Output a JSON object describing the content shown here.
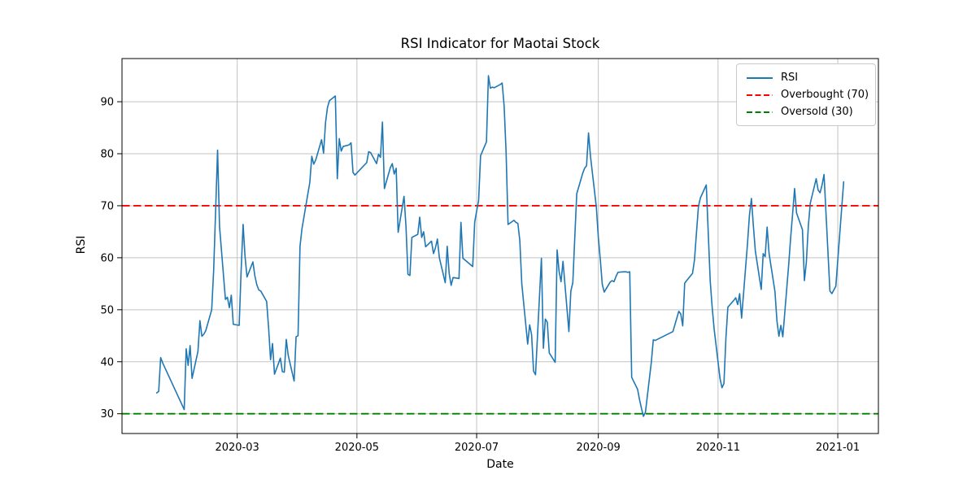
{
  "figure": {
    "title": "RSI Indicator for Maotai Stock",
    "xlabel": "Date",
    "ylabel": "RSI"
  },
  "chart_data": {
    "type": "line",
    "title": "RSI Indicator for Maotai Stock",
    "xlabel": "Date",
    "ylabel": "RSI",
    "grid": true,
    "legend_position": "upper right",
    "ylim": [
      26.2,
      98.3
    ],
    "xlim_days_since_2020_01_01": [
      1.3,
      386.7
    ],
    "y_ticks": [
      30,
      40,
      50,
      60,
      70,
      80,
      90
    ],
    "x_ticks": [
      {
        "label": "2020-03",
        "date": "2020-03-01"
      },
      {
        "label": "2020-05",
        "date": "2020-05-01"
      },
      {
        "label": "2020-07",
        "date": "2020-07-01"
      },
      {
        "label": "2020-09",
        "date": "2020-09-01"
      },
      {
        "label": "2020-11",
        "date": "2020-11-01"
      },
      {
        "label": "2021-01",
        "date": "2021-01-01"
      }
    ],
    "hlines": [
      {
        "label": "Overbought (70)",
        "value": 70,
        "color": "#ff0000",
        "style": "dashed"
      },
      {
        "label": "Oversold (30)",
        "value": 30,
        "color": "#008000",
        "style": "dashed"
      }
    ],
    "legend": {
      "entries": [
        {
          "label": "RSI",
          "color": "#1f77b4",
          "dash": "solid"
        },
        {
          "label": "Overbought (70)",
          "color": "#ff0000",
          "dash": "dashed"
        },
        {
          "label": "Oversold (30)",
          "color": "#008000",
          "dash": "dashed"
        }
      ]
    },
    "series": [
      {
        "name": "RSI",
        "color": "#1f77b4",
        "points": [
          [
            "2020-01-20",
            34.0
          ],
          [
            "2020-01-21",
            34.3
          ],
          [
            "2020-01-22",
            40.8
          ],
          [
            "2020-01-23",
            39.8
          ],
          [
            "2020-02-03",
            30.8
          ],
          [
            "2020-02-04",
            42.5
          ],
          [
            "2020-02-05",
            39.3
          ],
          [
            "2020-02-06",
            43.1
          ],
          [
            "2020-02-07",
            36.8
          ],
          [
            "2020-02-10",
            42.0
          ],
          [
            "2020-02-11",
            47.9
          ],
          [
            "2020-02-12",
            44.9
          ],
          [
            "2020-02-13",
            45.3
          ],
          [
            "2020-02-14",
            46.0
          ],
          [
            "2020-02-17",
            50.0
          ],
          [
            "2020-02-18",
            57.5
          ],
          [
            "2020-02-19",
            69.0
          ],
          [
            "2020-02-20",
            80.7
          ],
          [
            "2020-02-21",
            66.0
          ],
          [
            "2020-02-24",
            52.0
          ],
          [
            "2020-02-25",
            52.4
          ],
          [
            "2020-02-26",
            50.4
          ],
          [
            "2020-02-27",
            52.8
          ],
          [
            "2020-02-28",
            47.2
          ],
          [
            "2020-03-02",
            47.0
          ],
          [
            "2020-03-03",
            57.5
          ],
          [
            "2020-03-04",
            66.4
          ],
          [
            "2020-03-05",
            60.2
          ],
          [
            "2020-03-06",
            56.3
          ],
          [
            "2020-03-09",
            59.2
          ],
          [
            "2020-03-10",
            56.5
          ],
          [
            "2020-03-11",
            54.8
          ],
          [
            "2020-03-12",
            53.8
          ],
          [
            "2020-03-13",
            53.6
          ],
          [
            "2020-03-16",
            51.6
          ],
          [
            "2020-03-17",
            46.5
          ],
          [
            "2020-03-18",
            40.4
          ],
          [
            "2020-03-19",
            43.5
          ],
          [
            "2020-03-20",
            37.6
          ],
          [
            "2020-03-23",
            40.7
          ],
          [
            "2020-03-24",
            38.1
          ],
          [
            "2020-03-25",
            38.0
          ],
          [
            "2020-03-26",
            44.3
          ],
          [
            "2020-03-27",
            41.2
          ],
          [
            "2020-03-30",
            36.3
          ],
          [
            "2020-03-31",
            44.8
          ],
          [
            "2020-04-01",
            45.0
          ],
          [
            "2020-04-02",
            62.2
          ],
          [
            "2020-04-03",
            65.6
          ],
          [
            "2020-04-07",
            74.5
          ],
          [
            "2020-04-08",
            79.5
          ],
          [
            "2020-04-09",
            78.0
          ],
          [
            "2020-04-10",
            78.8
          ],
          [
            "2020-04-13",
            82.7
          ],
          [
            "2020-04-14",
            80.1
          ],
          [
            "2020-04-15",
            86.0
          ],
          [
            "2020-04-16",
            88.9
          ],
          [
            "2020-04-17",
            90.2
          ],
          [
            "2020-04-20",
            91.1
          ],
          [
            "2020-04-21",
            75.2
          ],
          [
            "2020-04-22",
            82.9
          ],
          [
            "2020-04-23",
            80.5
          ],
          [
            "2020-04-24",
            81.4
          ],
          [
            "2020-04-27",
            81.7
          ],
          [
            "2020-04-28",
            82.1
          ],
          [
            "2020-04-29",
            76.4
          ],
          [
            "2020-04-30",
            75.9
          ],
          [
            "2020-05-06",
            78.3
          ],
          [
            "2020-05-07",
            80.4
          ],
          [
            "2020-05-08",
            80.2
          ],
          [
            "2020-05-11",
            78.1
          ],
          [
            "2020-05-12",
            79.9
          ],
          [
            "2020-05-13",
            79.3
          ],
          [
            "2020-05-14",
            86.1
          ],
          [
            "2020-05-15",
            73.3
          ],
          [
            "2020-05-18",
            77.3
          ],
          [
            "2020-05-19",
            78.1
          ],
          [
            "2020-05-20",
            76.1
          ],
          [
            "2020-05-21",
            77.2
          ],
          [
            "2020-05-22",
            64.9
          ],
          [
            "2020-05-25",
            71.8
          ],
          [
            "2020-05-26",
            66.0
          ],
          [
            "2020-05-27",
            56.8
          ],
          [
            "2020-05-28",
            56.6
          ],
          [
            "2020-05-29",
            63.9
          ],
          [
            "2020-06-01",
            64.5
          ],
          [
            "2020-06-02",
            67.8
          ],
          [
            "2020-06-03",
            63.9
          ],
          [
            "2020-06-04",
            65.0
          ],
          [
            "2020-06-05",
            62.1
          ],
          [
            "2020-06-08",
            63.2
          ],
          [
            "2020-06-09",
            60.8
          ],
          [
            "2020-06-10",
            61.9
          ],
          [
            "2020-06-11",
            63.6
          ],
          [
            "2020-06-12",
            60.0
          ],
          [
            "2020-06-15",
            55.2
          ],
          [
            "2020-06-16",
            62.2
          ],
          [
            "2020-06-17",
            57.0
          ],
          [
            "2020-06-18",
            54.7
          ],
          [
            "2020-06-19",
            56.2
          ],
          [
            "2020-06-22",
            56.0
          ],
          [
            "2020-06-23",
            66.8
          ],
          [
            "2020-06-24",
            59.9
          ],
          [
            "2020-06-29",
            58.3
          ],
          [
            "2020-06-30",
            66.8
          ],
          [
            "2020-07-01",
            69.0
          ],
          [
            "2020-07-02",
            71.0
          ],
          [
            "2020-07-03",
            79.6
          ],
          [
            "2020-07-06",
            82.3
          ],
          [
            "2020-07-07",
            95.0
          ],
          [
            "2020-07-08",
            92.6
          ],
          [
            "2020-07-09",
            92.8
          ],
          [
            "2020-07-10",
            92.7
          ],
          [
            "2020-07-13",
            93.3
          ],
          [
            "2020-07-14",
            93.6
          ],
          [
            "2020-07-15",
            89.2
          ],
          [
            "2020-07-16",
            80.3
          ],
          [
            "2020-07-17",
            66.4
          ],
          [
            "2020-07-20",
            67.2
          ],
          [
            "2020-07-21",
            66.8
          ],
          [
            "2020-07-22",
            66.6
          ],
          [
            "2020-07-23",
            63.3
          ],
          [
            "2020-07-24",
            55.0
          ],
          [
            "2020-07-27",
            43.4
          ],
          [
            "2020-07-28",
            47.1
          ],
          [
            "2020-07-29",
            45.2
          ],
          [
            "2020-07-30",
            38.2
          ],
          [
            "2020-07-31",
            37.5
          ],
          [
            "2020-08-03",
            59.9
          ],
          [
            "2020-08-04",
            42.6
          ],
          [
            "2020-08-05",
            48.2
          ],
          [
            "2020-08-06",
            47.6
          ],
          [
            "2020-08-07",
            41.7
          ],
          [
            "2020-08-10",
            39.9
          ],
          [
            "2020-08-11",
            61.5
          ],
          [
            "2020-08-12",
            57.4
          ],
          [
            "2020-08-13",
            55.4
          ],
          [
            "2020-08-14",
            59.3
          ],
          [
            "2020-08-17",
            45.8
          ],
          [
            "2020-08-18",
            53.6
          ],
          [
            "2020-08-19",
            55.2
          ],
          [
            "2020-08-20",
            63.9
          ],
          [
            "2020-08-21",
            72.3
          ],
          [
            "2020-08-24",
            76.2
          ],
          [
            "2020-08-25",
            77.2
          ],
          [
            "2020-08-26",
            77.7
          ],
          [
            "2020-08-27",
            84.0
          ],
          [
            "2020-08-28",
            79.5
          ],
          [
            "2020-08-31",
            69.7
          ],
          [
            "2020-09-01",
            63.9
          ],
          [
            "2020-09-02",
            59.7
          ],
          [
            "2020-09-03",
            54.9
          ],
          [
            "2020-09-04",
            53.4
          ],
          [
            "2020-09-07",
            55.3
          ],
          [
            "2020-09-08",
            55.6
          ],
          [
            "2020-09-09",
            55.4
          ],
          [
            "2020-09-10",
            56.4
          ],
          [
            "2020-09-11",
            57.2
          ],
          [
            "2020-09-14",
            57.3
          ],
          [
            "2020-09-15",
            57.3
          ],
          [
            "2020-09-16",
            57.2
          ],
          [
            "2020-09-17",
            57.3
          ],
          [
            "2020-09-18",
            37.0
          ],
          [
            "2020-09-21",
            34.7
          ],
          [
            "2020-09-22",
            32.7
          ],
          [
            "2020-09-23",
            31.0
          ],
          [
            "2020-09-24",
            29.5
          ],
          [
            "2020-09-25",
            30.3
          ],
          [
            "2020-09-28",
            39.9
          ],
          [
            "2020-09-29",
            44.2
          ],
          [
            "2020-09-30",
            44.1
          ],
          [
            "2020-10-09",
            45.8
          ],
          [
            "2020-10-12",
            49.7
          ],
          [
            "2020-10-13",
            49.2
          ],
          [
            "2020-10-14",
            46.9
          ],
          [
            "2020-10-15",
            55.1
          ],
          [
            "2020-10-16",
            55.6
          ],
          [
            "2020-10-19",
            57.0
          ],
          [
            "2020-10-20",
            59.6
          ],
          [
            "2020-10-21",
            64.8
          ],
          [
            "2020-10-22",
            69.8
          ],
          [
            "2020-10-23",
            71.5
          ],
          [
            "2020-10-26",
            74.0
          ],
          [
            "2020-10-27",
            64.8
          ],
          [
            "2020-10-28",
            55.6
          ],
          [
            "2020-10-29",
            50.5
          ],
          [
            "2020-10-30",
            46.3
          ],
          [
            "2020-11-02",
            36.8
          ],
          [
            "2020-11-03",
            35.0
          ],
          [
            "2020-11-04",
            35.8
          ],
          [
            "2020-11-05",
            44.5
          ],
          [
            "2020-11-06",
            50.5
          ],
          [
            "2020-11-09",
            51.8
          ],
          [
            "2020-11-10",
            52.3
          ],
          [
            "2020-11-11",
            51.0
          ],
          [
            "2020-11-12",
            53.1
          ],
          [
            "2020-11-13",
            48.4
          ],
          [
            "2020-11-16",
            62.7
          ],
          [
            "2020-11-17",
            68.2
          ],
          [
            "2020-11-18",
            71.4
          ],
          [
            "2020-11-19",
            66.1
          ],
          [
            "2020-11-20",
            61.3
          ],
          [
            "2020-11-23",
            53.9
          ],
          [
            "2020-11-24",
            60.8
          ],
          [
            "2020-11-25",
            60.2
          ],
          [
            "2020-11-26",
            65.9
          ],
          [
            "2020-11-27",
            60.8
          ],
          [
            "2020-11-30",
            53.5
          ],
          [
            "2020-12-01",
            47.9
          ],
          [
            "2020-12-02",
            44.9
          ],
          [
            "2020-12-03",
            47.0
          ],
          [
            "2020-12-04",
            44.8
          ],
          [
            "2020-12-07",
            58.7
          ],
          [
            "2020-12-08",
            63.9
          ],
          [
            "2020-12-09",
            68.5
          ],
          [
            "2020-12-10",
            73.3
          ],
          [
            "2020-12-11",
            68.6
          ],
          [
            "2020-12-14",
            65.4
          ],
          [
            "2020-12-15",
            55.6
          ],
          [
            "2020-12-16",
            59.2
          ],
          [
            "2020-12-17",
            66.1
          ],
          [
            "2020-12-18",
            70.5
          ],
          [
            "2020-12-21",
            75.2
          ],
          [
            "2020-12-22",
            73.0
          ],
          [
            "2020-12-23",
            72.5
          ],
          [
            "2020-12-24",
            74.0
          ],
          [
            "2020-12-25",
            76.0
          ],
          [
            "2020-12-28",
            53.6
          ],
          [
            "2020-12-29",
            53.1
          ],
          [
            "2020-12-30",
            53.8
          ],
          [
            "2020-12-31",
            54.5
          ],
          [
            "2021-01-04",
            74.6
          ]
        ]
      }
    ]
  }
}
